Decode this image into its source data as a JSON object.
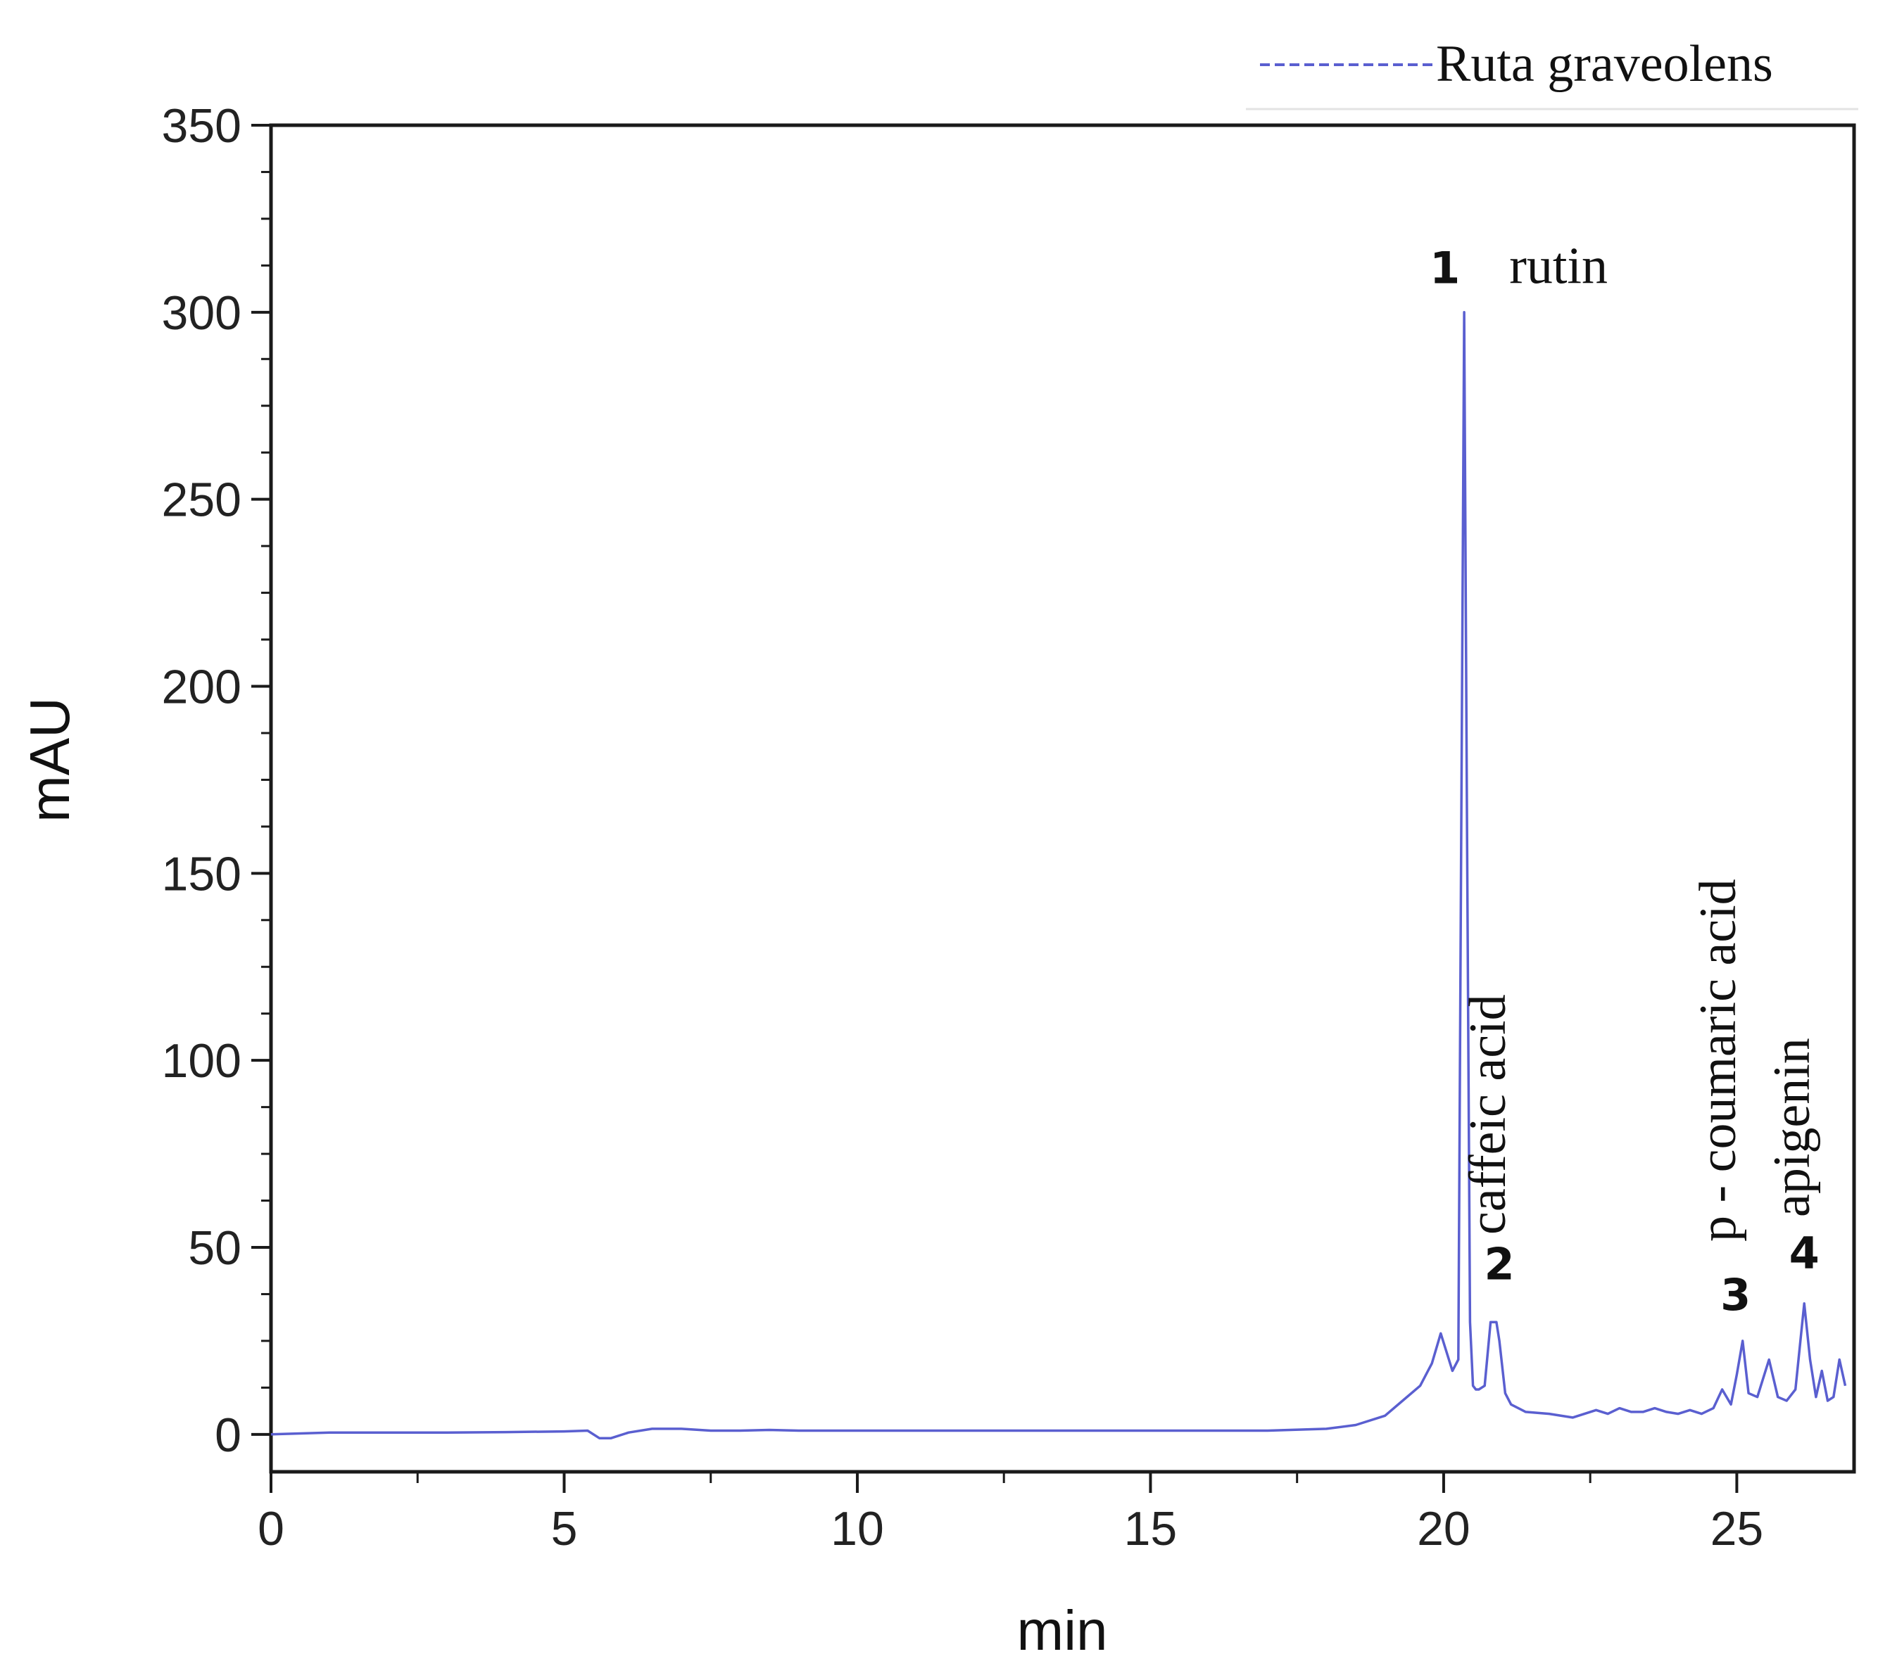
{
  "chart_data": {
    "type": "line",
    "xlabel": "min",
    "ylabel": "mAU",
    "xlim": [
      0,
      27
    ],
    "ylim": [
      -10,
      350
    ],
    "x_ticks": [
      0,
      5,
      10,
      15,
      20,
      25
    ],
    "y_ticks": [
      0,
      50,
      100,
      150,
      200,
      250,
      300,
      350
    ],
    "grid": false,
    "legend": {
      "position": "top-right",
      "entries": [
        "Ruta graveolens"
      ]
    },
    "series": [
      {
        "name": "Ruta graveolens",
        "color": "#5a5fd0",
        "x": [
          0,
          1,
          2,
          3,
          4,
          5,
          5.4,
          5.6,
          5.8,
          6.1,
          6.5,
          7,
          7.5,
          8,
          8.5,
          9,
          10,
          11,
          12,
          13,
          14,
          15,
          16,
          17,
          18,
          18.5,
          19,
          19.3,
          19.6,
          19.8,
          19.95,
          20.05,
          20.15,
          20.25,
          20.3,
          20.35,
          20.4,
          20.45,
          20.5,
          20.55,
          20.6,
          20.7,
          20.8,
          20.9,
          20.95,
          21.05,
          21.15,
          21.4,
          21.8,
          22.2,
          22.6,
          22.8,
          23.0,
          23.2,
          23.4,
          23.6,
          23.8,
          24.0,
          24.2,
          24.4,
          24.6,
          24.75,
          24.9,
          25.0,
          25.1,
          25.2,
          25.35,
          25.55,
          25.7,
          25.85,
          26.0,
          26.15,
          26.25,
          26.35,
          26.45,
          26.55,
          26.65,
          26.75,
          26.85
        ],
        "y": [
          0,
          0.5,
          0.5,
          0.5,
          0.6,
          0.8,
          1,
          -1,
          -1,
          0.5,
          1.5,
          1.5,
          1,
          1,
          1.2,
          1,
          1,
          1,
          1,
          1,
          1,
          1,
          1,
          1,
          1.5,
          2.5,
          5,
          9,
          13,
          19,
          27,
          22,
          17,
          20,
          160,
          300,
          160,
          30,
          13,
          12,
          12,
          13,
          30,
          30,
          25,
          11,
          8,
          6,
          5.5,
          4.5,
          6.5,
          5.5,
          7,
          6,
          6,
          7,
          6,
          5.5,
          6.5,
          5.5,
          7,
          12,
          8,
          16,
          25,
          11,
          10,
          20,
          10,
          9,
          12,
          35,
          20,
          10,
          17,
          9,
          10,
          20,
          13
        ]
      }
    ],
    "annotations": [
      {
        "x": 20.4,
        "y": 304,
        "number": "1",
        "name": "rutin"
      },
      {
        "x": 20.95,
        "y": 32,
        "number": "2",
        "name": "caffeic acid"
      },
      {
        "x": 25.1,
        "y": 25,
        "number": "3",
        "name": "p - coumaric acid"
      },
      {
        "x": 26.15,
        "y": 35,
        "number": "4",
        "name": "apigenin"
      }
    ]
  }
}
